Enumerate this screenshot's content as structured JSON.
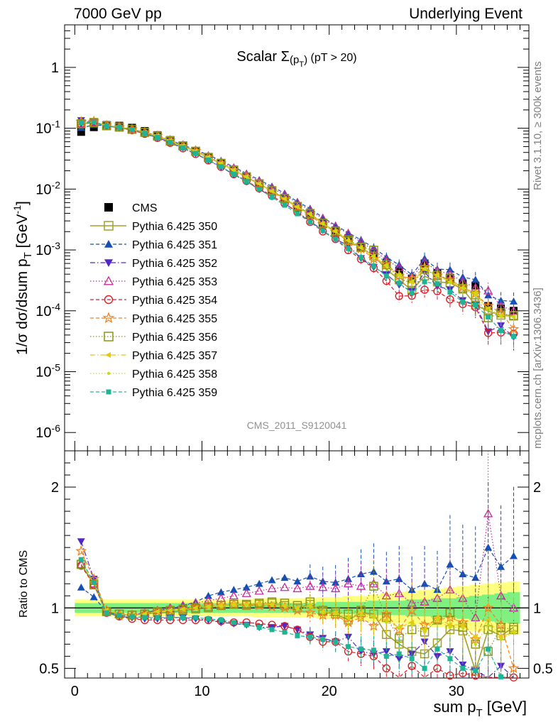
{
  "header": {
    "left": "7000 GeV pp",
    "right": "Underlying Event"
  },
  "side_labels": {
    "rivet": "Rivet 3.1.10, ≥ 300k events",
    "mcplots": "mcplots.cern.ch [arXiv:1306.3436]"
  },
  "plot_title": "Scalar Σ(p_T) (pT > 20)",
  "analysis_id": "CMS_2011_S9120041",
  "colors": {
    "CMS": "#000000",
    "350": "#a0a02e",
    "351": "#1450b4",
    "352": "#5028c8",
    "353": "#c8289b",
    "354": "#dc1e28",
    "355": "#f5821e",
    "356": "#8c9614",
    "357": "#e6c814",
    "358": "#c8dc14",
    "359": "#1eb496",
    "band_yellow": "#ffff80",
    "band_green": "#80f080"
  },
  "chart_data": [
    {
      "type": "scatter",
      "panel": "main",
      "xlabel": "sum p_T [GeV]",
      "ylabel": "1/σ dσ/dsum p_T [GeV^-1]",
      "log_y": true,
      "xlim": [
        -0.8,
        35.7
      ],
      "ylim": [
        5e-07,
        5
      ],
      "x_ticks": [
        0,
        10,
        20,
        30
      ],
      "y_ticks": [
        "10^-6",
        "10^-5",
        "10^-4",
        "10^-3",
        "10^-2",
        "10^-1",
        "1"
      ],
      "legend_position": "left-middle",
      "x": [
        0.5,
        1.5,
        2.5,
        3.5,
        4.5,
        5.5,
        6.5,
        7.5,
        8.5,
        9.5,
        10.5,
        11.5,
        12.5,
        13.5,
        14.5,
        15.5,
        16.5,
        17.5,
        18.5,
        19.5,
        20.5,
        21.5,
        22.5,
        23.5,
        24.5,
        25.5,
        26.5,
        27.5,
        28.5,
        29.5,
        30.5,
        31.5,
        32.5,
        33.5,
        34.5
      ],
      "cms": [
        0.087,
        0.104,
        0.113,
        0.11,
        0.102,
        0.09,
        0.077,
        0.064,
        0.052,
        0.042,
        0.033,
        0.026,
        0.02,
        0.0155,
        0.0118,
        0.009,
        0.0068,
        0.0051,
        0.0038,
        0.0028,
        0.0021,
        0.00155,
        0.00114,
        0.00084,
        0.00062,
        0.00046,
        0.00034,
        0.0006,
        0.00042,
        0.00035,
        0.00028,
        0.00026,
        0.00012,
        0.00011,
        0.0001
      ],
      "series": [
        {
          "name": "CMS",
          "key": "CMS",
          "marker": "square-filled",
          "line": "none"
        },
        {
          "name": "Pythia 6.425 350",
          "key": "350",
          "marker": "square-open",
          "line": "solid",
          "ratio": [
            1.36,
            1.2,
            0.97,
            0.95,
            0.94,
            0.95,
            0.96,
            0.96,
            0.98,
            0.99,
            1.0,
            1.02,
            1.03,
            1.02,
            1.03,
            1.04,
            1.02,
            1.0,
            1.03,
            0.97,
            0.95,
            0.9,
            0.96,
            0.95,
            0.78,
            0.7,
            0.64,
            0.62,
            0.71,
            0.82,
            0.81,
            0.48,
            0.82,
            0.77,
            0.84
          ]
        },
        {
          "name": "Pythia 6.425 351",
          "key": "351",
          "marker": "triangle-up-filled",
          "line": "dashed",
          "ratio": [
            1.17,
            1.09,
            0.97,
            0.94,
            0.94,
            0.96,
            0.98,
            0.99,
            1.02,
            1.05,
            1.1,
            1.13,
            1.15,
            1.17,
            1.2,
            1.23,
            1.25,
            1.22,
            1.26,
            1.22,
            1.21,
            1.24,
            1.28,
            1.3,
            1.22,
            1.24,
            1.15,
            1.2,
            1.15,
            1.36,
            1.28,
            1.25,
            1.5,
            1.34,
            1.43
          ]
        },
        {
          "name": "Pythia 6.425 352",
          "key": "352",
          "marker": "triangle-down-filled",
          "line": "dashdot",
          "ratio": [
            1.55,
            1.24,
            0.96,
            0.93,
            0.92,
            0.91,
            0.91,
            0.92,
            0.92,
            0.91,
            0.9,
            0.88,
            0.87,
            0.86,
            0.84,
            0.84,
            0.85,
            0.82,
            0.78,
            0.75,
            0.72,
            0.76,
            0.64,
            0.62,
            0.64,
            0.58,
            0.62,
            0.72,
            0.6,
            0.64,
            0.53,
            0.48,
            0.38,
            0.52,
            0.37
          ]
        },
        {
          "name": "Pythia 6.425 353",
          "key": "353",
          "marker": "triangle-up-open",
          "line": "dotted",
          "ratio": [
            1.36,
            1.2,
            0.97,
            0.95,
            0.94,
            0.96,
            0.98,
            1.0,
            1.02,
            1.04,
            1.06,
            1.08,
            1.1,
            1.12,
            1.14,
            1.16,
            1.17,
            1.16,
            1.18,
            1.17,
            1.16,
            1.2,
            1.18,
            1.2,
            1.1,
            1.12,
            1.04,
            1.05,
            1.08,
            1.15,
            1.08,
            0.92,
            1.78,
            1.1,
            1.0
          ]
        },
        {
          "name": "Pythia 6.425 354",
          "key": "354",
          "marker": "circle-open",
          "line": "dashed",
          "ratio": [
            1.35,
            1.19,
            0.96,
            0.93,
            0.91,
            0.9,
            0.9,
            0.9,
            0.9,
            0.9,
            0.9,
            0.89,
            0.88,
            0.88,
            0.87,
            0.86,
            0.85,
            0.82,
            0.76,
            0.72,
            0.72,
            0.64,
            0.62,
            0.6,
            0.5,
            0.38,
            0.52,
            0.37,
            0.5,
            0.44,
            0.46,
            0.44,
            0.36,
            0.4,
            0.42
          ]
        },
        {
          "name": "Pythia 6.425 355",
          "key": "355",
          "marker": "star",
          "line": "dashed",
          "ratio": [
            1.47,
            1.24,
            0.98,
            0.94,
            0.94,
            0.95,
            0.97,
            0.98,
            0.99,
            1.01,
            1.02,
            1.02,
            1.03,
            1.02,
            1.02,
            1.01,
            1.0,
            0.98,
            0.96,
            0.94,
            0.94,
            0.88,
            0.92,
            0.85,
            0.95,
            0.82,
            0.98,
            0.86,
            0.9,
            0.92,
            0.88,
            0.74,
            1.0,
            0.86,
            0.5
          ]
        },
        {
          "name": "Pythia 6.425 356",
          "key": "356",
          "marker": "square-open",
          "line": "dotted",
          "ratio": [
            1.36,
            1.19,
            0.97,
            0.95,
            0.94,
            0.95,
            0.97,
            0.98,
            0.99,
            1.0,
            1.01,
            1.02,
            1.03,
            1.03,
            1.04,
            1.05,
            1.04,
            1.02,
            1.05,
            0.98,
            0.97,
            0.95,
            0.98,
            1.18,
            0.92,
            0.75,
            0.82,
            0.8,
            0.9,
            0.96,
            0.84,
            0.7,
            0.64,
            0.84,
            0.82
          ]
        },
        {
          "name": "Pythia 6.425 357",
          "key": "357",
          "marker": "triangle-left",
          "line": "dashdot",
          "ratio": [
            1.4,
            1.2,
            0.98,
            0.95,
            0.94,
            0.95,
            0.97,
            0.98,
            0.99,
            1.0,
            1.01,
            1.02,
            1.03,
            1.03,
            1.04,
            1.03,
            1.02,
            1.0,
            1.02,
            0.97,
            0.96,
            0.92,
            0.96,
            0.93,
            0.9,
            0.84,
            0.88,
            0.82,
            0.92,
            0.86,
            0.86,
            0.76,
            0.9,
            0.76,
            0.8
          ]
        },
        {
          "name": "Pythia 6.425 358",
          "key": "358",
          "marker": "dot",
          "line": "dotted",
          "ratio": [
            1.4,
            1.21,
            0.98,
            0.95,
            0.94,
            0.95,
            0.97,
            0.98,
            0.99,
            1.0,
            1.01,
            1.01,
            1.02,
            1.02,
            1.03,
            1.02,
            1.01,
            0.99,
            1.01,
            0.96,
            0.95,
            0.92,
            0.94,
            0.92,
            0.88,
            0.84,
            0.86,
            0.8,
            0.9,
            0.84,
            0.84,
            0.7,
            0.86,
            0.74,
            0.8
          ]
        },
        {
          "name": "Pythia 6.425 359",
          "key": "359",
          "marker": "square-small",
          "line": "dashed",
          "ratio": [
            1.4,
            1.21,
            0.96,
            0.94,
            0.93,
            0.92,
            0.92,
            0.92,
            0.92,
            0.92,
            0.91,
            0.9,
            0.88,
            0.86,
            0.84,
            0.82,
            0.8,
            0.77,
            0.76,
            0.74,
            0.72,
            0.68,
            0.66,
            0.65,
            0.6,
            0.62,
            0.58,
            0.5,
            0.66,
            0.58,
            0.5,
            0.48,
            0.66,
            0.43,
            0.38
          ]
        }
      ]
    },
    {
      "type": "scatter",
      "panel": "ratio",
      "ylabel": "Ratio to CMS",
      "xlabel": "sum p_T [GeV]",
      "xlim": [
        -0.8,
        35.7
      ],
      "ylim": [
        0.42,
        2.3
      ],
      "y_ticks": [
        0.5,
        1,
        2
      ],
      "x_ticks": [
        0,
        10,
        20,
        30
      ],
      "reference": 1,
      "band_green": [
        0.04,
        0.04,
        0.04,
        0.04,
        0.04,
        0.04,
        0.04,
        0.04,
        0.04,
        0.04,
        0.04,
        0.04,
        0.04,
        0.04,
        0.04,
        0.04,
        0.04,
        0.04,
        0.04,
        0.05,
        0.05,
        0.05,
        0.05,
        0.06,
        0.06,
        0.06,
        0.07,
        0.07,
        0.08,
        0.08,
        0.09,
        0.1,
        0.11,
        0.12,
        0.13
      ],
      "band_yellow": [
        0.07,
        0.07,
        0.07,
        0.07,
        0.07,
        0.07,
        0.07,
        0.07,
        0.07,
        0.07,
        0.07,
        0.07,
        0.07,
        0.07,
        0.08,
        0.08,
        0.08,
        0.08,
        0.08,
        0.09,
        0.09,
        0.1,
        0.1,
        0.11,
        0.12,
        0.13,
        0.14,
        0.15,
        0.16,
        0.17,
        0.18,
        0.19,
        0.2,
        0.21,
        0.22
      ]
    }
  ]
}
